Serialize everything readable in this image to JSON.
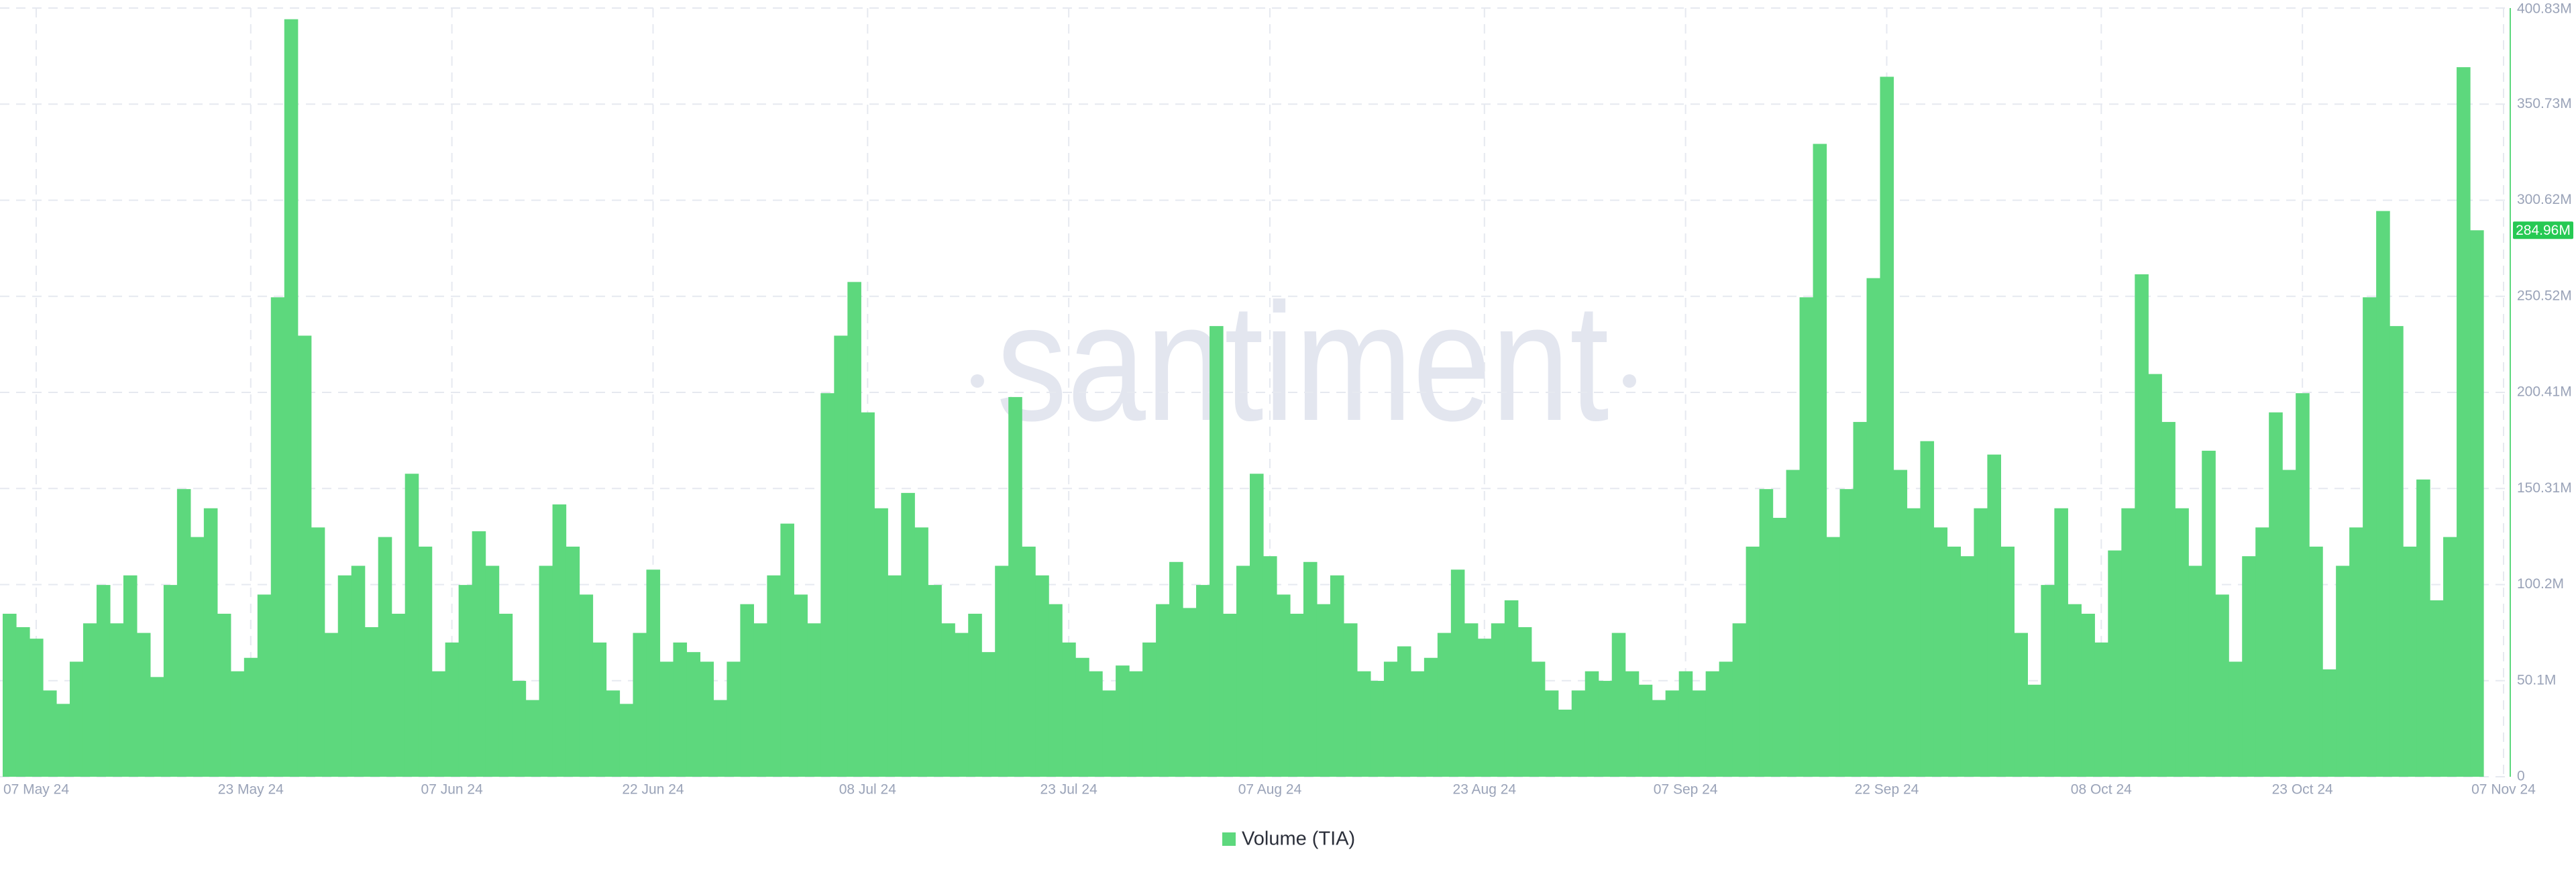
{
  "chart_data": {
    "type": "bar",
    "watermark": "santiment",
    "grid": true,
    "categories": [
      null,
      null,
      "07 May 24",
      null,
      null,
      null,
      null,
      null,
      null,
      null,
      null,
      null,
      null,
      null,
      null,
      null,
      null,
      null,
      "23 May 24",
      null,
      null,
      null,
      null,
      null,
      null,
      null,
      null,
      null,
      null,
      null,
      null,
      null,
      null,
      "07 Jun 24",
      null,
      null,
      null,
      null,
      null,
      null,
      null,
      null,
      null,
      null,
      null,
      null,
      null,
      null,
      "22 Jun 24",
      null,
      null,
      null,
      null,
      null,
      null,
      null,
      null,
      null,
      null,
      null,
      null,
      null,
      null,
      null,
      "08 Jul 24",
      null,
      null,
      null,
      null,
      null,
      null,
      null,
      null,
      null,
      null,
      null,
      null,
      null,
      null,
      "23 Jul 24",
      null,
      null,
      null,
      null,
      null,
      null,
      null,
      null,
      null,
      null,
      null,
      null,
      null,
      null,
      "07 Aug 24",
      null,
      null,
      null,
      null,
      null,
      null,
      null,
      null,
      null,
      null,
      null,
      null,
      null,
      null,
      null,
      "23 Aug 24",
      null,
      null,
      null,
      null,
      null,
      null,
      null,
      null,
      null,
      null,
      null,
      null,
      null,
      null,
      "07 Sep 24",
      null,
      null,
      null,
      null,
      null,
      null,
      null,
      null,
      null,
      null,
      null,
      null,
      null,
      null,
      "22 Sep 24",
      null,
      null,
      null,
      null,
      null,
      null,
      null,
      null,
      null,
      null,
      null,
      null,
      null,
      null,
      null,
      "08 Oct 24",
      null,
      null,
      null,
      null,
      null,
      null,
      null,
      null,
      null,
      null,
      null,
      null,
      null,
      null,
      "23 Oct 24",
      null,
      null,
      null,
      null,
      null,
      null,
      null,
      null,
      null,
      null,
      null,
      null,
      null,
      null,
      "07 Nov 24"
    ],
    "series": [
      {
        "name": "Volume (TIA)",
        "color": "#5dd87d",
        "values": [
          85,
          78,
          72,
          45,
          38,
          60,
          80,
          100,
          80,
          105,
          75,
          52,
          100,
          150,
          125,
          140,
          85,
          55,
          62,
          95,
          250,
          395,
          230,
          130,
          75,
          105,
          110,
          78,
          125,
          85,
          158,
          120,
          55,
          70,
          100,
          128,
          110,
          85,
          50,
          40,
          110,
          142,
          120,
          95,
          70,
          45,
          38,
          75,
          108,
          60,
          70,
          65,
          60,
          40,
          60,
          90,
          80,
          105,
          132,
          95,
          80,
          200,
          230,
          258,
          190,
          140,
          105,
          148,
          130,
          100,
          80,
          75,
          85,
          65,
          110,
          198,
          120,
          105,
          90,
          70,
          62,
          55,
          45,
          58,
          55,
          70,
          90,
          112,
          88,
          100,
          235,
          85,
          110,
          158,
          115,
          95,
          85,
          112,
          90,
          105,
          80,
          55,
          50,
          60,
          68,
          55,
          62,
          75,
          108,
          80,
          72,
          80,
          92,
          78,
          60,
          45,
          35,
          45,
          55,
          50,
          75,
          55,
          48,
          40,
          45,
          55,
          45,
          55,
          60,
          80,
          120,
          150,
          135,
          160,
          250,
          330,
          125,
          150,
          185,
          260,
          365,
          160,
          140,
          175,
          130,
          120,
          115,
          140,
          168,
          120,
          75,
          48,
          100,
          140,
          90,
          85,
          70,
          118,
          140,
          262,
          210,
          185,
          140,
          110,
          170,
          95,
          60,
          115,
          130,
          190,
          160,
          200,
          120,
          56,
          110,
          130,
          250,
          295,
          235,
          120,
          155,
          92,
          125,
          370,
          284.96,
          null,
          null
        ]
      }
    ],
    "ylim": [
      0,
      400.83
    ],
    "yticks": [
      0,
      {
        "value": 50.1,
        "label": "50.1M"
      },
      {
        "value": 100.2,
        "label": "100.2M"
      },
      {
        "value": 150.31,
        "label": "150.31M"
      },
      {
        "value": 200.41,
        "label": "200.41M"
      },
      {
        "value": 250.52,
        "label": "250.52M"
      },
      {
        "value": 300.62,
        "label": "300.62M"
      },
      {
        "value": 350.73,
        "label": "350.73M"
      },
      {
        "value": 400.83,
        "label": "400.83M"
      }
    ],
    "last_value": {
      "value": 284.96,
      "label": "284.96M"
    }
  }
}
